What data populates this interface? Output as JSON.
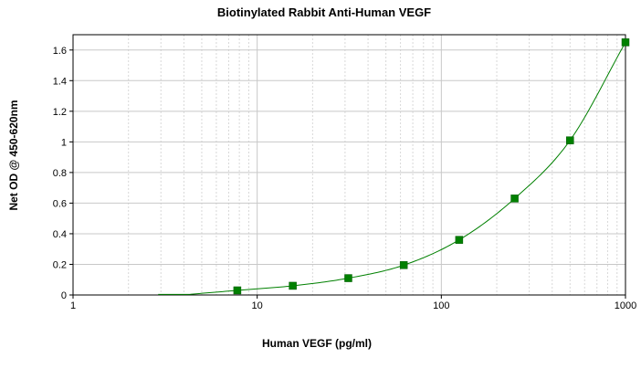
{
  "chart_data": {
    "type": "scatter",
    "title": "Biotinylated Rabbit Anti-Human VEGF",
    "xlabel": "Human VEGF (pg/ml)",
    "ylabel": "Net OD @ 450-620nm",
    "x_scale": "log",
    "xlim": [
      1,
      1000
    ],
    "ylim": [
      0,
      1.7
    ],
    "x_ticks": [
      1,
      10,
      100,
      1000
    ],
    "x_tick_labels": [
      "1",
      "10",
      "100",
      "1000"
    ],
    "y_ticks": [
      0,
      0.2,
      0.4,
      0.6,
      0.8,
      1,
      1.2,
      1.4,
      1.6
    ],
    "y_tick_labels": [
      "0",
      "0.2",
      "0.4",
      "0.6",
      "0.8",
      "1",
      "1.2",
      "1.4",
      "1.6"
    ],
    "grid": true,
    "legend": "none",
    "series": [
      {
        "points": [
          {
            "x": 7.8,
            "y": 0.03
          },
          {
            "x": 15.6,
            "y": 0.06
          },
          {
            "x": 31.25,
            "y": 0.11
          },
          {
            "x": 62.5,
            "y": 0.195
          },
          {
            "x": 125,
            "y": 0.36
          },
          {
            "x": 250,
            "y": 0.63
          },
          {
            "x": 500,
            "y": 1.01
          },
          {
            "x": 1000,
            "y": 1.65
          }
        ],
        "marker": "square",
        "color": "#008000"
      }
    ],
    "fit_curve": {
      "color": "#008000",
      "x_from": 2.9,
      "x_to": 1000
    }
  }
}
